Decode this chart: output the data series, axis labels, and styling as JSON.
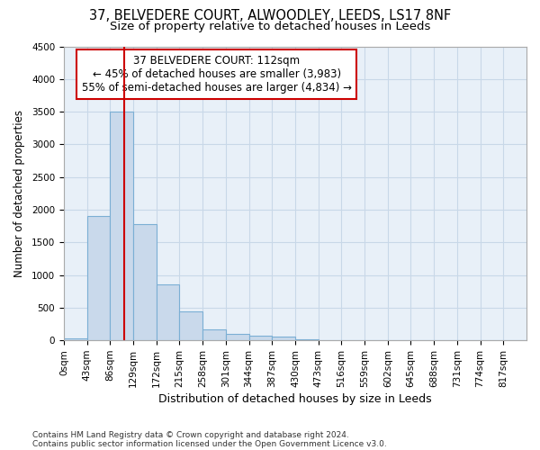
{
  "title1": "37, BELVEDERE COURT, ALWOODLEY, LEEDS, LS17 8NF",
  "title2": "Size of property relative to detached houses in Leeds",
  "xlabel": "Distribution of detached houses by size in Leeds",
  "ylabel": "Number of detached properties",
  "footer1": "Contains HM Land Registry data © Crown copyright and database right 2024.",
  "footer2": "Contains public sector information licensed under the Open Government Licence v3.0.",
  "annotation_title": "37 BELVEDERE COURT: 112sqm",
  "annotation_line1": "← 45% of detached houses are smaller (3,983)",
  "annotation_line2": "55% of semi-detached houses are larger (4,834) →",
  "bin_edges": [
    0,
    43,
    86,
    129,
    172,
    215,
    258,
    301,
    344,
    387,
    430,
    473,
    516,
    559,
    602,
    645,
    688,
    731,
    774,
    817,
    860
  ],
  "bar_heights": [
    30,
    1900,
    3500,
    1780,
    850,
    450,
    175,
    100,
    65,
    55,
    10,
    5,
    2,
    1,
    0,
    0,
    0,
    0,
    0,
    0
  ],
  "bar_color": "#c9d9eb",
  "bar_edge_color": "#7bafd4",
  "vline_color": "#cc0000",
  "vline_x": 112,
  "annotation_box_facecolor": "#ffffff",
  "annotation_box_edgecolor": "#cc0000",
  "ylim": [
    0,
    4500
  ],
  "yticks": [
    0,
    500,
    1000,
    1500,
    2000,
    2500,
    3000,
    3500,
    4000,
    4500
  ],
  "grid_color": "#c8d8e8",
  "bg_color": "#e8f0f8",
  "title1_fontsize": 10.5,
  "title2_fontsize": 9.5,
  "xlabel_fontsize": 9,
  "ylabel_fontsize": 8.5,
  "tick_fontsize": 7.5,
  "annotation_fontsize": 8.5,
  "footer_fontsize": 6.5
}
